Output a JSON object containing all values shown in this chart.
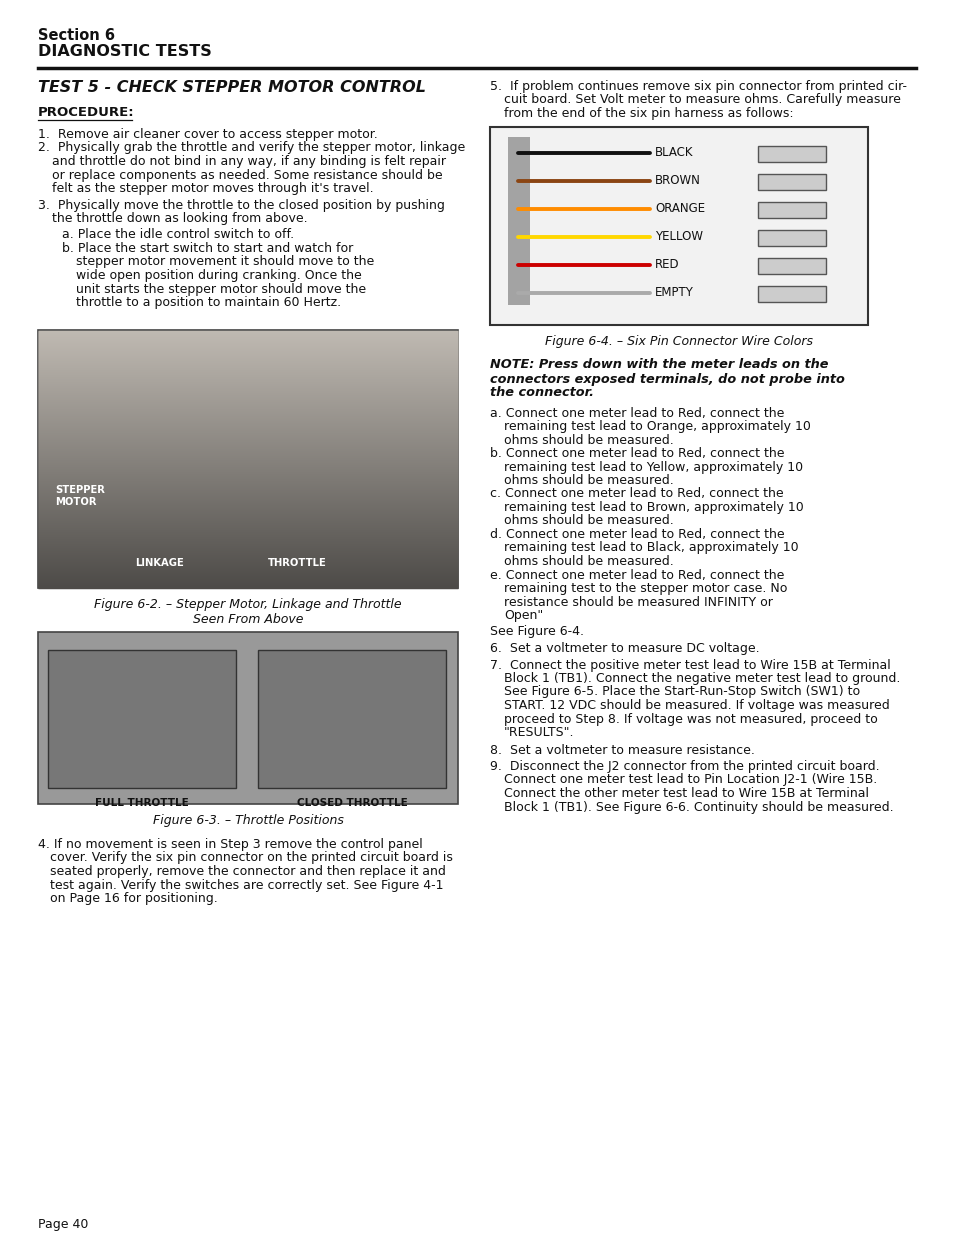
{
  "page_bg": "#ffffff",
  "section_header": "Section 6",
  "section_subheader": "DIAGNOSTIC TESTS",
  "test_title": "TEST 5 - CHECK STEPPER MOTOR CONTROL",
  "procedure_label": "PROCEDURE:",
  "fig2_caption": "Figure 6-2. – Stepper Motor, Linkage and Throttle\nSeen From Above",
  "fig3_caption": "Figure 6-3. – Throttle Positions",
  "fig4_caption": "Figure 6-4. – Six Pin Connector Wire Colors",
  "note_bold": "NOTE: Press down with the meter leads on the\nconnectors exposed terminals, do not probe into\nthe connector.",
  "see_fig4": "See Figure 6-4.",
  "step6": "6.  Set a voltmeter to measure DC voltage.",
  "step8": "8.  Set a voltmeter to measure resistance.",
  "page_num": "Page 40",
  "wire_colors": [
    "BLACK",
    "BROWN",
    "ORANGE",
    "YELLOW",
    "RED",
    "EMPTY"
  ],
  "wire_colors_hex": [
    "#111111",
    "#8B4513",
    "#FF8C00",
    "#FFD700",
    "#CC0000",
    "#888888"
  ],
  "throttle_labels": [
    "FULL THROTTLE",
    "CLOSED THROTTLE"
  ],
  "left_col_lines": [
    {
      "text": "1.  Remove air cleaner cover to access stepper motor.",
      "x": 38
    },
    {
      "text": "2.  Physically grab the throttle and verify the stepper motor, linkage",
      "x": 38
    },
    {
      "text": "and throttle do not bind in any way, if any binding is felt repair",
      "x": 52
    },
    {
      "text": "or replace components as needed. Some resistance should be",
      "x": 52
    },
    {
      "text": "felt as the stepper motor moves through it's travel.",
      "x": 52
    },
    {
      "text": "3.  Physically move the throttle to the closed position by pushing",
      "x": 38
    },
    {
      "text": "the throttle down as looking from above.",
      "x": 52
    },
    {
      "text": "a. Place the idle control switch to off.",
      "x": 62
    },
    {
      "text": "b. Place the start switch to start and watch for",
      "x": 62
    },
    {
      "text": "stepper motor movement it should move to the",
      "x": 76
    },
    {
      "text": "wide open position during cranking. Once the",
      "x": 76
    },
    {
      "text": "unit starts the stepper motor should move the",
      "x": 76
    },
    {
      "text": "throttle to a position to maintain 60 Hertz.",
      "x": 76
    }
  ],
  "step4_lines": [
    {
      "text": "4. If no movement is seen in Step 3 remove the control panel",
      "x": 38
    },
    {
      "text": "cover. Verify the six pin connector on the printed circuit board is",
      "x": 50
    },
    {
      "text": "seated properly, remove the connector and then replace it and",
      "x": 50
    },
    {
      "text": "test again. Verify the switches are correctly set. See Figure 4-1",
      "x": 50
    },
    {
      "text": "on Page 16 for positioning.",
      "x": 50
    }
  ],
  "step5_lines": [
    {
      "text": "5.  If problem continues remove six pin connector from printed cir-",
      "x": 0
    },
    {
      "text": "cuit board. Set Volt meter to measure ohms. Carefully measure",
      "x": 14
    },
    {
      "text": "from the end of the six pin harness as follows:",
      "x": 14
    }
  ],
  "steps_ae_lines": [
    {
      "text": "a. Connect one meter lead to Red, connect the",
      "x": 0
    },
    {
      "text": "remaining test lead to Orange, approximately 10",
      "x": 14
    },
    {
      "text": "ohms should be measured.",
      "x": 14
    },
    {
      "text": "b. Connect one meter lead to Red, connect the",
      "x": 0
    },
    {
      "text": "remaining test lead to Yellow, approximately 10",
      "x": 14
    },
    {
      "text": "ohms should be measured.",
      "x": 14
    },
    {
      "text": "c. Connect one meter lead to Red, connect the",
      "x": 0
    },
    {
      "text": "remaining test lead to Brown, approximately 10",
      "x": 14
    },
    {
      "text": "ohms should be measured.",
      "x": 14
    },
    {
      "text": "d. Connect one meter lead to Red, connect the",
      "x": 0
    },
    {
      "text": "remaining test lead to Black, approximately 10",
      "x": 14
    },
    {
      "text": "ohms should be measured.",
      "x": 14
    },
    {
      "text": "e. Connect one meter lead to Red, connect the",
      "x": 0
    },
    {
      "text": "remaining test to the stepper motor case. No",
      "x": 14
    },
    {
      "text": "resistance should be measured INFINITY or",
      "x": 14
    },
    {
      "text": "Open\"",
      "x": 14
    }
  ],
  "step7_lines": [
    {
      "text": "7.  Connect the positive meter test lead to Wire 15B at Terminal",
      "x": 0
    },
    {
      "text": "Block 1 (TB1). Connect the negative meter test lead to ground.",
      "x": 14
    },
    {
      "text": "See Figure 6-5. Place the Start-Run-Stop Switch (SW1) to",
      "x": 14
    },
    {
      "text": "START. 12 VDC should be measured. If voltage was measured",
      "x": 14
    },
    {
      "text": "proceed to Step 8. If voltage was not measured, proceed to",
      "x": 14
    },
    {
      "text": "\"RESULTS\".",
      "x": 14
    }
  ],
  "step9_lines": [
    {
      "text": "9.  Disconnect the J2 connector from the printed circuit board.",
      "x": 0
    },
    {
      "text": "Connect one meter test lead to Pin Location J2-1 (Wire 15B.",
      "x": 14
    },
    {
      "text": "Connect the other meter test lead to Wire 15B at Terminal",
      "x": 14
    },
    {
      "text": "Block 1 (TB1). See Figure 6-6. Continuity should be measured.",
      "x": 14
    }
  ]
}
